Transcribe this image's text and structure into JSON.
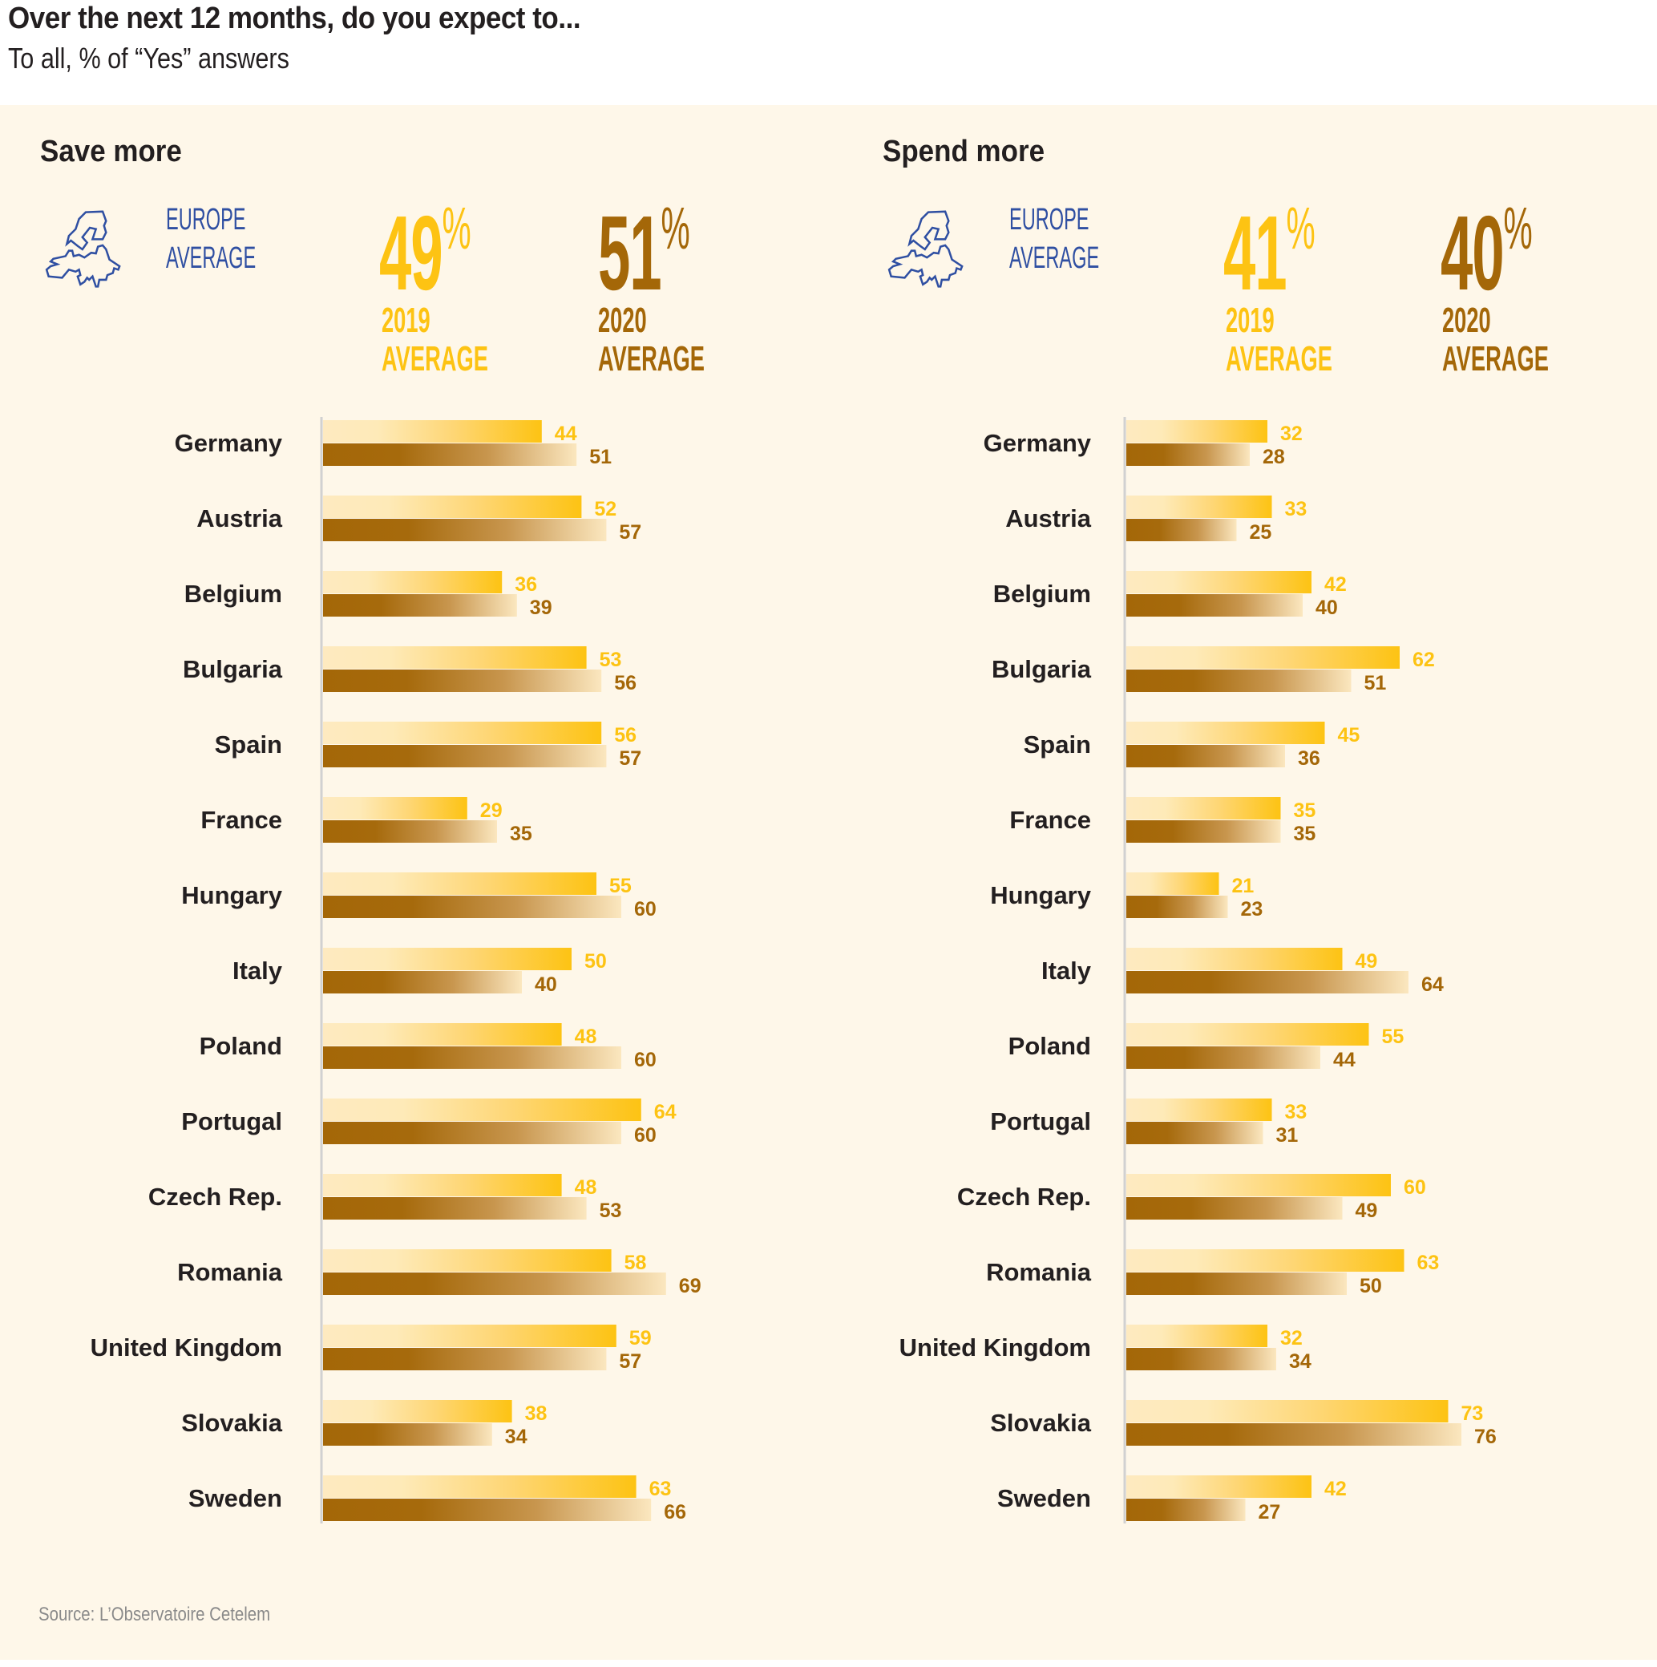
{
  "header": {
    "title": "Over the next 12 months, do you expect to...",
    "subtitle": "To all, % of “Yes” answers"
  },
  "colors": {
    "y2019": "#fdc313",
    "y2019_light": "#feeac0",
    "y2020": "#a46708",
    "y2020_light": "#fbe7bf",
    "europe_blue": "#2f4fa2",
    "background": "#fef7e9"
  },
  "europe_label": [
    "EUROPE",
    "AVERAGE"
  ],
  "source": "Source: L’Observatoire Cetelem",
  "chart_data": [
    {
      "type": "bar",
      "orientation": "horizontal",
      "title": "Save more",
      "averages": {
        "2019": {
          "value": "49",
          "unit": "%",
          "label_year": "2019",
          "label": "AVERAGE"
        },
        "2020": {
          "value": "51",
          "unit": "%",
          "label_year": "2020",
          "label": "AVERAGE"
        }
      },
      "categories": [
        "Germany",
        "Austria",
        "Belgium",
        "Bulgaria",
        "Spain",
        "France",
        "Hungary",
        "Italy",
        "Poland",
        "Portugal",
        "Czech Rep.",
        "Romania",
        "United Kingdom",
        "Slovakia",
        "Sweden"
      ],
      "series": [
        {
          "name": "2019",
          "values": [
            44,
            52,
            36,
            53,
            56,
            29,
            55,
            50,
            48,
            64,
            48,
            58,
            59,
            38,
            63
          ]
        },
        {
          "name": "2020",
          "values": [
            51,
            57,
            39,
            56,
            57,
            35,
            60,
            40,
            60,
            60,
            53,
            69,
            57,
            34,
            66
          ]
        }
      ],
      "xlabel": "",
      "ylabel": "",
      "unit": "%",
      "grid": false
    },
    {
      "type": "bar",
      "orientation": "horizontal",
      "title": "Spend more",
      "averages": {
        "2019": {
          "value": "41",
          "unit": "%",
          "label_year": "2019",
          "label": "AVERAGE"
        },
        "2020": {
          "value": "40",
          "unit": "%",
          "label_year": "2020",
          "label": "AVERAGE"
        }
      },
      "categories": [
        "Germany",
        "Austria",
        "Belgium",
        "Bulgaria",
        "Spain",
        "France",
        "Hungary",
        "Italy",
        "Poland",
        "Portugal",
        "Czech Rep.",
        "Romania",
        "United Kingdom",
        "Slovakia",
        "Sweden"
      ],
      "series": [
        {
          "name": "2019",
          "values": [
            32,
            33,
            42,
            62,
            45,
            35,
            21,
            49,
            55,
            33,
            60,
            63,
            32,
            73,
            42
          ]
        },
        {
          "name": "2020",
          "values": [
            28,
            25,
            40,
            51,
            36,
            35,
            23,
            64,
            44,
            31,
            49,
            50,
            34,
            76,
            27
          ]
        }
      ],
      "xlabel": "",
      "ylabel": "",
      "unit": "%",
      "grid": false
    }
  ]
}
